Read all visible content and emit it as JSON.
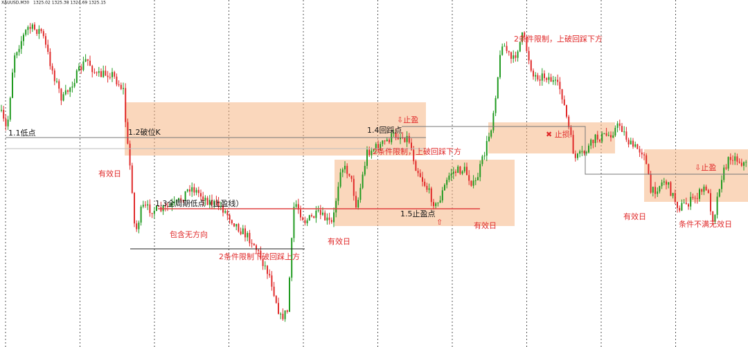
{
  "header": {
    "symbol": "XAUUSD,M30",
    "ohlc": "1325.02 1325.38 1324.69 1325.15"
  },
  "annotations": {
    "a1": "1.1低点",
    "a2": "1.2破位K",
    "a3": "有效日",
    "a4": "1.3全周期低点（止盈线）",
    "a5": "包含无方向",
    "a6": "2条件限制下破回踩上方",
    "a7": "有效日",
    "a8": "1.4回踩点",
    "a9": "⇩止盈",
    "a10": "2条件限制，上破回踩下方",
    "a11": "1.5止盈点",
    "a12": "⇧",
    "a13": "有效日",
    "a14": "2条件限制，上破回踩下方",
    "a15": "✖ 止损",
    "a16": "有效日",
    "a17": "⇩止盈",
    "a18": "条件不满无效日"
  }
}
